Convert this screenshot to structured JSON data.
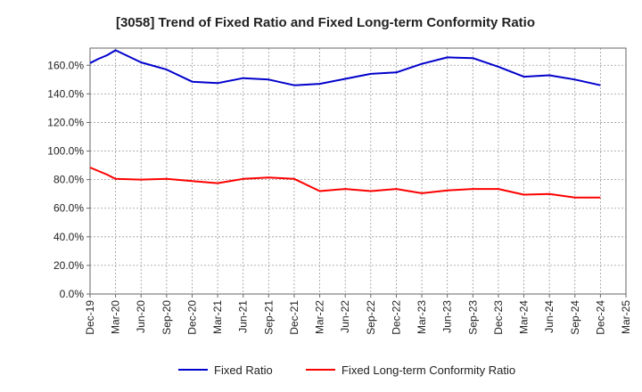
{
  "chart_data": {
    "type": "line",
    "title": "[3058]  Trend of Fixed Ratio and Fixed Long-term Conformity Ratio",
    "xlabel": "",
    "ylabel": "",
    "ylim": [
      0,
      172
    ],
    "yticks": [
      "0.0%",
      "20.0%",
      "40.0%",
      "60.0%",
      "80.0%",
      "100.0%",
      "120.0%",
      "140.0%",
      "160.0%"
    ],
    "ytick_values": [
      0,
      20,
      40,
      60,
      80,
      100,
      120,
      140,
      160
    ],
    "xticks": [
      "Dec-19",
      "Mar-20",
      "Jun-20",
      "Sep-20",
      "Dec-20",
      "Mar-21",
      "Jun-21",
      "Sep-21",
      "Dec-21",
      "Mar-22",
      "Jun-22",
      "Sep-22",
      "Dec-22",
      "Mar-23",
      "Jun-23",
      "Sep-23",
      "Dec-23",
      "Mar-24",
      "Jun-24",
      "Sep-24",
      "Dec-24",
      "Mar-25"
    ],
    "x": [
      "Dec-19",
      "Jan-20",
      "Feb-20",
      "Mar-20",
      "Jun-20",
      "Sep-20",
      "Dec-20",
      "Mar-21",
      "Jun-21",
      "Sep-21",
      "Dec-21",
      "Mar-22",
      "Jun-22",
      "Sep-22",
      "Dec-22",
      "Mar-23",
      "Jun-23",
      "Sep-23",
      "Dec-23",
      "Mar-24",
      "Jun-24",
      "Sep-24",
      "Dec-24"
    ],
    "grid": true,
    "legend_position": "bottom",
    "series": [
      {
        "name": "Fixed Ratio",
        "color": "#0000cc",
        "values": [
          161.5,
          164.5,
          167.0,
          170.5,
          162.0,
          157.0,
          148.5,
          147.5,
          151.0,
          150.0,
          146.0,
          147.0,
          150.5,
          154.0,
          155.0,
          161.0,
          165.5,
          165.0,
          159.0,
          152.0,
          153.0,
          150.0,
          146.0
        ]
      },
      {
        "name": "Fixed Long-term Conformity Ratio",
        "color": "#ff0000",
        "values": [
          88.5,
          86.0,
          83.5,
          80.5,
          80.0,
          80.5,
          79.0,
          77.5,
          80.5,
          81.5,
          80.5,
          72.0,
          73.5,
          72.0,
          73.5,
          70.5,
          72.5,
          73.5,
          73.5,
          69.5,
          70.0,
          67.5,
          67.5
        ]
      }
    ]
  }
}
